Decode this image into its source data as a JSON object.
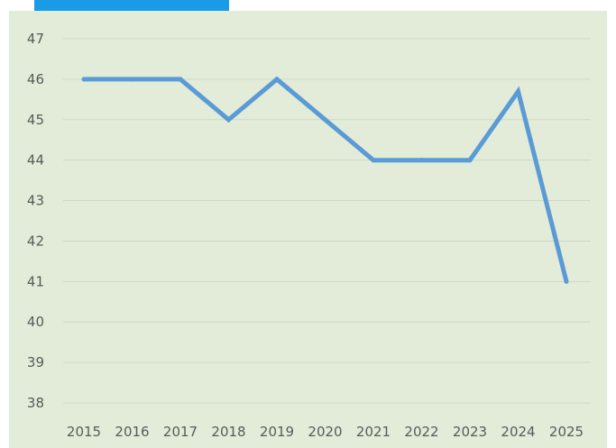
{
  "colors": {
    "tab": "#1a9be6",
    "plot_background": "#e2ecd9",
    "line": "#5b9bd5",
    "grid": "#cfd8c6",
    "tick_text": "#5a5a5a"
  },
  "chart_data": {
    "type": "line",
    "title": "",
    "xlabel": "",
    "ylabel": "",
    "categories": [
      "2015",
      "2016",
      "2017",
      "2018",
      "2019",
      "2020",
      "2021",
      "2022",
      "2023",
      "2024",
      "2025"
    ],
    "series": [
      {
        "values": [
          46,
          46,
          46,
          45,
          46,
          45,
          44,
          44,
          44,
          45.7,
          41
        ]
      }
    ],
    "ylim": [
      38,
      47
    ],
    "yticks": [
      47,
      46,
      45,
      44,
      43,
      42,
      41,
      40,
      39,
      38
    ],
    "grid": true,
    "legend": "none"
  }
}
